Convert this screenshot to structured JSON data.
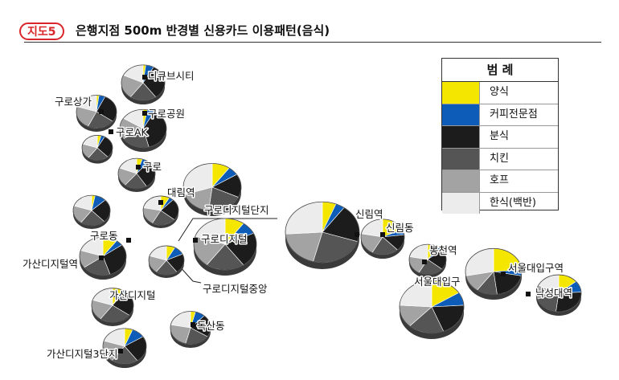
{
  "title": {
    "tag": "지도5",
    "text": "은행지점 500m 반경별 신용카드 이용패턴(음식)"
  },
  "legend": {
    "title": "범 례",
    "items": [
      {
        "key": "western",
        "label": "양식",
        "color": "#f5e600"
      },
      {
        "key": "coffee",
        "label": "커피전문점",
        "color": "#0d5db8"
      },
      {
        "key": "snack",
        "label": "분식",
        "color": "#1c1c1c"
      },
      {
        "key": "chicken",
        "label": "치킨",
        "color": "#555555"
      },
      {
        "key": "pub",
        "label": "호프",
        "color": "#a3a3a3"
      },
      {
        "key": "korean",
        "label": "한식(백반)",
        "color": "#ececec"
      }
    ]
  },
  "branches": [
    {
      "name": "디큐브시티",
      "shares": [
        2,
        6,
        32,
        20,
        22,
        18
      ]
    },
    {
      "name": "구로상가",
      "shares": [
        2,
        5,
        28,
        22,
        23,
        20
      ]
    },
    {
      "name": "구로공원",
      "shares": [
        3,
        5,
        38,
        20,
        18,
        16
      ]
    },
    {
      "name": "구로AK",
      "shares": [
        4,
        4,
        30,
        22,
        20,
        20
      ]
    },
    {
      "name": "구로",
      "shares": [
        5,
        6,
        30,
        20,
        20,
        19
      ]
    },
    {
      "name": "대림역",
      "shares": [
        8,
        4,
        24,
        22,
        20,
        22
      ]
    },
    {
      "name": "구로디지털단지",
      "shares": [
        10,
        6,
        16,
        20,
        18,
        30
      ]
    },
    {
      "name": "구로동",
      "shares": [
        3,
        10,
        25,
        22,
        20,
        20
      ]
    },
    {
      "name": "구로디지털",
      "shares": [
        10,
        8,
        22,
        20,
        20,
        20
      ]
    },
    {
      "name": "가산디지털역",
      "shares": [
        10,
        5,
        30,
        20,
        15,
        20
      ]
    },
    {
      "name": "구로디지털중앙",
      "shares": [
        8,
        10,
        22,
        20,
        20,
        20
      ]
    },
    {
      "name": "신림역",
      "shares": [
        6,
        4,
        20,
        24,
        20,
        26
      ]
    },
    {
      "name": "신림동",
      "shares": [
        18,
        5,
        15,
        20,
        20,
        22
      ]
    },
    {
      "name": "가산디지털",
      "shares": [
        8,
        2,
        25,
        25,
        20,
        20
      ]
    },
    {
      "name": "봉천역",
      "shares": [
        10,
        4,
        22,
        22,
        20,
        22
      ]
    },
    {
      "name": "서울대입구역",
      "shares": [
        24,
        4,
        20,
        12,
        12,
        28
      ]
    },
    {
      "name": "서울대입구",
      "shares": [
        16,
        8,
        20,
        18,
        14,
        24
      ]
    },
    {
      "name": "낙성대역",
      "shares": [
        14,
        10,
        28,
        18,
        12,
        18
      ]
    },
    {
      "name": "독산동",
      "shares": [
        4,
        8,
        22,
        20,
        24,
        22
      ]
    },
    {
      "name": "가산디지털3단지",
      "shares": [
        6,
        10,
        24,
        20,
        20,
        20
      ]
    }
  ]
}
